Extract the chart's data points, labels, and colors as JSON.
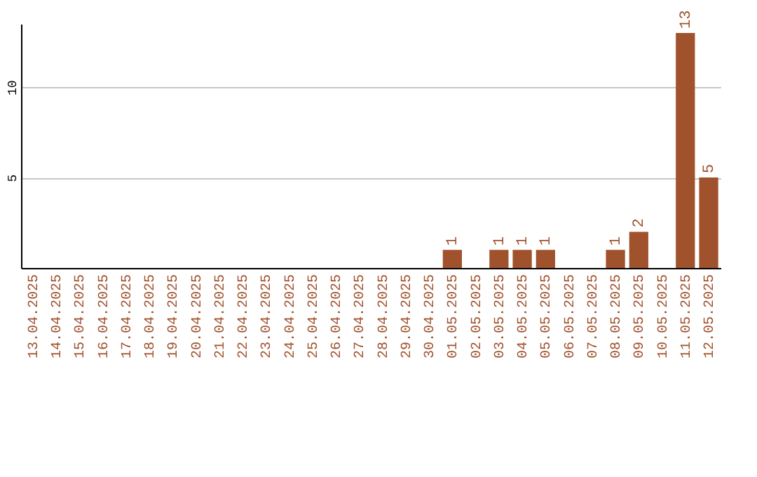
{
  "chart_data": {
    "type": "bar",
    "categories": [
      "13.04.2025",
      "14.04.2025",
      "15.04.2025",
      "16.04.2025",
      "17.04.2025",
      "18.04.2025",
      "19.04.2025",
      "20.04.2025",
      "21.04.2025",
      "22.04.2025",
      "23.04.2025",
      "24.04.2025",
      "25.04.2025",
      "26.04.2025",
      "27.04.2025",
      "28.04.2025",
      "29.04.2025",
      "30.04.2025",
      "01.05.2025",
      "02.05.2025",
      "03.05.2025",
      "04.05.2025",
      "05.05.2025",
      "06.05.2025",
      "07.05.2025",
      "08.05.2025",
      "09.05.2025",
      "10.05.2025",
      "11.05.2025",
      "12.05.2025"
    ],
    "values": [
      0,
      0,
      0,
      0,
      0,
      0,
      0,
      0,
      0,
      0,
      0,
      0,
      0,
      0,
      0,
      0,
      0,
      0,
      1,
      0,
      1,
      1,
      1,
      0,
      0,
      1,
      2,
      0,
      13,
      5
    ],
    "value_labels": [
      null,
      null,
      null,
      null,
      null,
      null,
      null,
      null,
      null,
      null,
      null,
      null,
      null,
      null,
      null,
      null,
      null,
      null,
      "1",
      null,
      "1",
      "1",
      "1",
      null,
      null,
      "1",
      "2",
      null,
      "13",
      "5"
    ],
    "color": "#a0522d",
    "ylim": [
      0,
      13.5
    ],
    "yticks": [
      5,
      10
    ],
    "grid": "y"
  }
}
